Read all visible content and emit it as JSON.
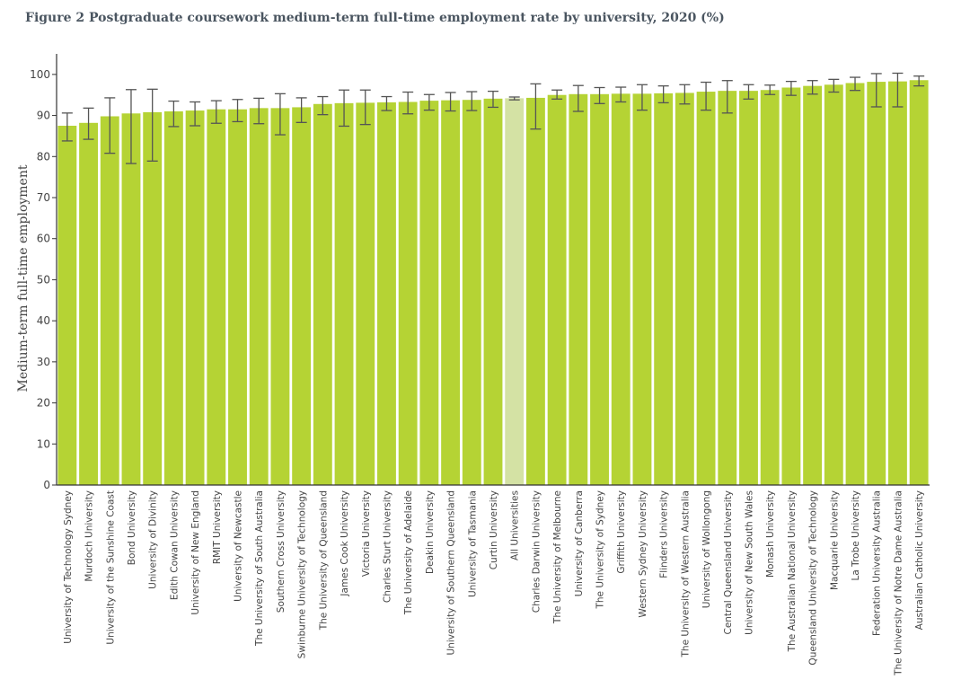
{
  "chart_data": {
    "type": "bar",
    "title": "Figure 2 Postgraduate coursework medium-term full-time employment rate by university, 2020 (%)",
    "xlabel": "",
    "ylabel": "Medium-term full-time employment",
    "ylim": [
      0,
      105
    ],
    "yticks": [
      0,
      10,
      20,
      30,
      40,
      50,
      60,
      70,
      80,
      90,
      100
    ],
    "grid": false,
    "highlight": "All Universities",
    "colors": {
      "bar": "#b5d334",
      "highlight": "#d4e2a4",
      "errorbar": "#555555",
      "axis": "#333333",
      "text": "#444444"
    },
    "categories": [
      "University of Technology Sydney",
      "Murdoch University",
      "University of the Sunshine Coast",
      "Bond University",
      "University of Divinity",
      "Edith Cowan University",
      "University of New England",
      "RMIT University",
      "University of Newcastle",
      "The University of South Australia",
      "Southern Cross University",
      "Swinburne University of Technology",
      "The University of Queensland",
      "James Cook University",
      "Victoria University",
      "Charles Sturt University",
      "The University of Adelaide",
      "Deakin University",
      "University of Southern Queensland",
      "University of Tasmania",
      "Curtin University",
      "All Universities",
      "Charles Darwin University",
      "The University of Melbourne",
      "University of Canberra",
      "The University of Sydney",
      "Griffith University",
      "Western Sydney University",
      "Flinders University",
      "The University of Western Australia",
      "University of Wollongong",
      "Central Queensland University",
      "University of New South Wales",
      "Monash University",
      "The Australian National University",
      "Queensland University of Technology",
      "Macquarie University",
      "La Trobe University",
      "Federation University Australia",
      "The University of Notre Dame Australia",
      "Australian Catholic University"
    ],
    "values": [
      87.5,
      88.2,
      89.8,
      90.5,
      90.8,
      91.0,
      91.2,
      91.5,
      91.5,
      91.8,
      91.8,
      92.0,
      92.8,
      93.0,
      93.1,
      93.2,
      93.3,
      93.6,
      93.7,
      93.8,
      94.1,
      94.2,
      94.3,
      95.0,
      95.2,
      95.2,
      95.3,
      95.3,
      95.4,
      95.5,
      95.8,
      96.0,
      96.0,
      96.2,
      96.8,
      97.2,
      97.5,
      97.9,
      98.2,
      98.3,
      98.6
    ],
    "error_low": [
      83.8,
      84.2,
      80.8,
      78.3,
      78.9,
      87.3,
      87.5,
      88.1,
      88.5,
      88.0,
      85.3,
      88.3,
      90.2,
      87.4,
      87.8,
      91.2,
      90.4,
      91.3,
      91.1,
      91.2,
      92.0,
      93.8,
      86.7,
      94.0,
      91.0,
      92.9,
      93.3,
      91.3,
      93.1,
      92.8,
      91.3,
      90.6,
      94.0,
      95.1,
      94.9,
      95.2,
      95.7,
      96.1,
      92.1,
      92.1,
      97.2
    ],
    "error_high": [
      90.6,
      91.8,
      94.3,
      96.3,
      96.4,
      93.5,
      93.3,
      93.6,
      93.9,
      94.2,
      95.3,
      94.3,
      94.6,
      96.2,
      96.2,
      94.6,
      95.7,
      95.1,
      95.6,
      95.8,
      95.9,
      94.5,
      97.7,
      96.2,
      97.3,
      96.8,
      96.9,
      97.5,
      97.2,
      97.5,
      98.1,
      98.5,
      97.5,
      97.4,
      98.3,
      98.5,
      98.8,
      99.3,
      100.2,
      100.3,
      99.6
    ]
  }
}
